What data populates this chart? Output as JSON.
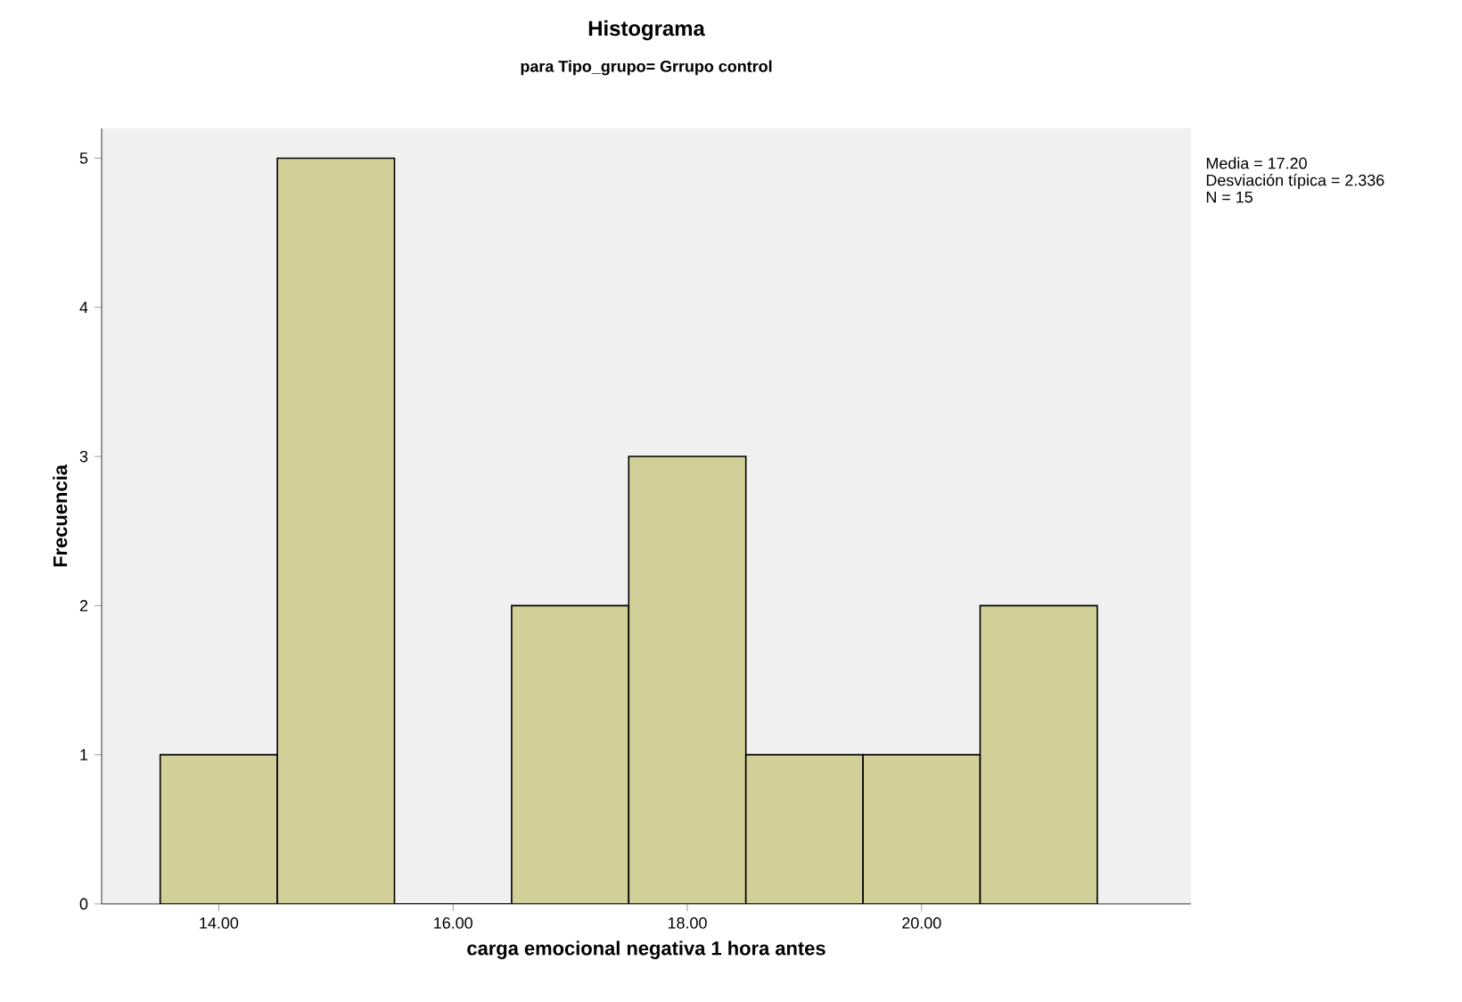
{
  "chart_data": {
    "type": "histogram",
    "title": "Histograma",
    "subtitle": "para Tipo_grupo= Grrupo control",
    "xlabel": "carga emocional negativa 1 hora antes",
    "ylabel": "Frecuencia",
    "bins": [
      13.5,
      14.5,
      15.5,
      16.5,
      17.5,
      18.5,
      19.5,
      20.5,
      21.5
    ],
    "values": [
      1,
      5,
      0,
      2,
      3,
      1,
      1,
      2
    ],
    "color": "#d3cf98",
    "xlim": [
      13,
      22.3
    ],
    "ylim": [
      0,
      5.2
    ],
    "xticks": [
      {
        "value": 14,
        "label": "14.00"
      },
      {
        "value": 16,
        "label": "16.00"
      },
      {
        "value": 18,
        "label": "18.00"
      },
      {
        "value": 20,
        "label": "20.00"
      }
    ],
    "yticks": [
      0,
      1,
      2,
      3,
      4,
      5
    ],
    "annotations": [
      "Media = 17.20",
      "Desviación típica = 2.336",
      "N = 15"
    ]
  }
}
